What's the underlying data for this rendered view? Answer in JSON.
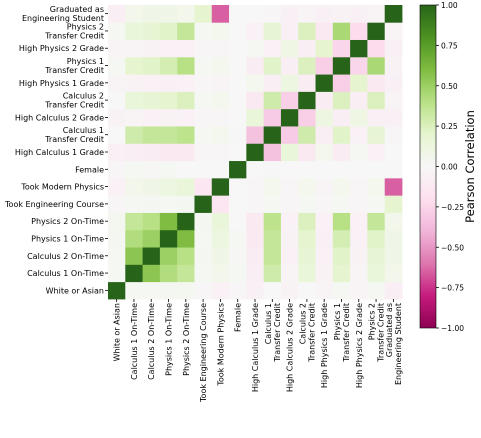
{
  "chart_data": {
    "type": "heatmap",
    "title": "",
    "xlabel": "",
    "ylabel": "",
    "grid": false,
    "labels": [
      "White or Asian",
      "Calculus 1 On-Time",
      "Calculus 2 On-Time",
      "Physics 1 On-Time",
      "Physics 2 On-Time",
      "Took Engineering Course",
      "Took Modern Physics",
      "Female",
      "High Calculus 1 Grade",
      "Calculus 1\nTransfer Credit",
      "High Calculus 2 Grade",
      "Calculus 2\nTransfer Credit",
      "High Physics 1 Grade",
      "Physics 1\nTransfer Credit",
      "High Physics 2 Grade",
      "Physics 2\nTransfer Credit",
      "Graduated as\nEngineering Student"
    ],
    "row_order": "top-to-bottom reversed (Graduated as Engineering Student at top, White or Asian at bottom)",
    "colorbar": {
      "label": "Pearson Correlation",
      "min": -1.0,
      "max": 1.0,
      "ticks": [
        "1.00",
        "0.75",
        "0.50",
        "0.25",
        "0.00",
        "−0.25",
        "−0.50",
        "−0.75",
        "−1.00"
      ],
      "colors": [
        "#8e0152",
        "#c51b7d",
        "#de77ae",
        "#f1b6da",
        "#fde0ef",
        "#f7f7f7",
        "#e6f5d0",
        "#b8e186",
        "#7fbc41",
        "#4d9221",
        "#276419"
      ]
    },
    "matrix": [
      [
        1.0,
        0.02,
        0.02,
        0.03,
        0.04,
        -0.02,
        -0.05,
        -0.02,
        -0.06,
        0.0,
        -0.04,
        0.0,
        -0.03,
        0.02,
        -0.03,
        0.02,
        -0.08
      ],
      [
        0.02,
        1.0,
        0.55,
        0.42,
        0.35,
        0.02,
        0.06,
        0.02,
        -0.08,
        0.3,
        -0.03,
        0.15,
        -0.04,
        0.2,
        -0.03,
        0.15,
        0.06
      ],
      [
        0.02,
        0.55,
        1.0,
        0.5,
        0.4,
        0.03,
        0.08,
        0.01,
        -0.1,
        0.35,
        -0.05,
        0.18,
        -0.05,
        0.22,
        -0.04,
        0.18,
        0.08
      ],
      [
        0.03,
        0.42,
        0.5,
        1.0,
        0.6,
        0.02,
        0.12,
        0.02,
        -0.12,
        0.35,
        -0.04,
        0.2,
        -0.06,
        0.28,
        -0.05,
        0.22,
        0.08
      ],
      [
        0.04,
        0.35,
        0.4,
        0.6,
        1.0,
        0.03,
        0.15,
        0.0,
        -0.12,
        0.38,
        -0.05,
        0.25,
        -0.05,
        0.4,
        -0.05,
        0.35,
        0.06
      ],
      [
        -0.02,
        0.02,
        0.03,
        0.02,
        0.03,
        1.0,
        -0.15,
        0.0,
        -0.02,
        0.02,
        -0.02,
        0.02,
        -0.02,
        0.02,
        -0.02,
        0.02,
        0.2
      ],
      [
        -0.05,
        0.06,
        0.08,
        0.12,
        0.15,
        -0.15,
        1.0,
        0.0,
        -0.02,
        0.05,
        -0.02,
        0.05,
        -0.03,
        0.05,
        -0.02,
        0.05,
        -0.65
      ],
      [
        -0.02,
        0.02,
        0.01,
        0.02,
        0.0,
        0.0,
        0.0,
        1.0,
        0.0,
        -0.01,
        0.0,
        0.0,
        0.0,
        0.0,
        0.0,
        0.0,
        0.0
      ],
      [
        -0.06,
        -0.08,
        -0.1,
        -0.12,
        -0.12,
        -0.02,
        -0.02,
        0.0,
        1.0,
        -0.35,
        0.15,
        -0.12,
        0.05,
        -0.1,
        0.02,
        -0.05,
        0.0
      ],
      [
        0.0,
        0.3,
        0.35,
        0.35,
        0.38,
        0.02,
        0.05,
        -0.01,
        -0.35,
        1.0,
        -0.3,
        0.3,
        -0.08,
        0.22,
        -0.05,
        0.18,
        -0.02
      ],
      [
        -0.04,
        -0.03,
        -0.05,
        -0.04,
        -0.05,
        -0.02,
        -0.02,
        0.0,
        0.15,
        -0.3,
        1.0,
        -0.28,
        0.12,
        -0.08,
        0.1,
        -0.06,
        -0.06
      ],
      [
        0.0,
        0.15,
        0.18,
        0.2,
        0.25,
        0.02,
        0.05,
        0.0,
        -0.12,
        0.3,
        -0.28,
        1.0,
        -0.1,
        0.25,
        -0.08,
        0.25,
        -0.03
      ],
      [
        -0.03,
        -0.04,
        -0.05,
        -0.06,
        -0.05,
        -0.02,
        -0.03,
        0.0,
        0.05,
        -0.08,
        0.12,
        -0.1,
        1.0,
        -0.28,
        0.2,
        -0.12,
        -0.06
      ],
      [
        0.02,
        0.2,
        0.22,
        0.28,
        0.4,
        0.02,
        0.05,
        0.0,
        -0.1,
        0.22,
        -0.08,
        0.25,
        -0.28,
        1.0,
        -0.25,
        0.45,
        -0.04
      ],
      [
        -0.03,
        -0.03,
        -0.04,
        -0.05,
        -0.05,
        -0.02,
        -0.02,
        0.0,
        0.02,
        -0.05,
        0.1,
        -0.08,
        0.2,
        -0.25,
        1.0,
        -0.22,
        -0.06
      ],
      [
        0.02,
        0.15,
        0.18,
        0.22,
        0.35,
        0.02,
        0.05,
        0.0,
        -0.05,
        0.18,
        -0.06,
        0.25,
        -0.12,
        0.45,
        -0.22,
        1.0,
        -0.03
      ],
      [
        -0.08,
        0.06,
        0.08,
        0.08,
        0.06,
        0.2,
        -0.65,
        0.0,
        0.0,
        -0.02,
        -0.06,
        -0.03,
        -0.06,
        -0.04,
        -0.06,
        -0.03,
        1.0
      ]
    ]
  }
}
